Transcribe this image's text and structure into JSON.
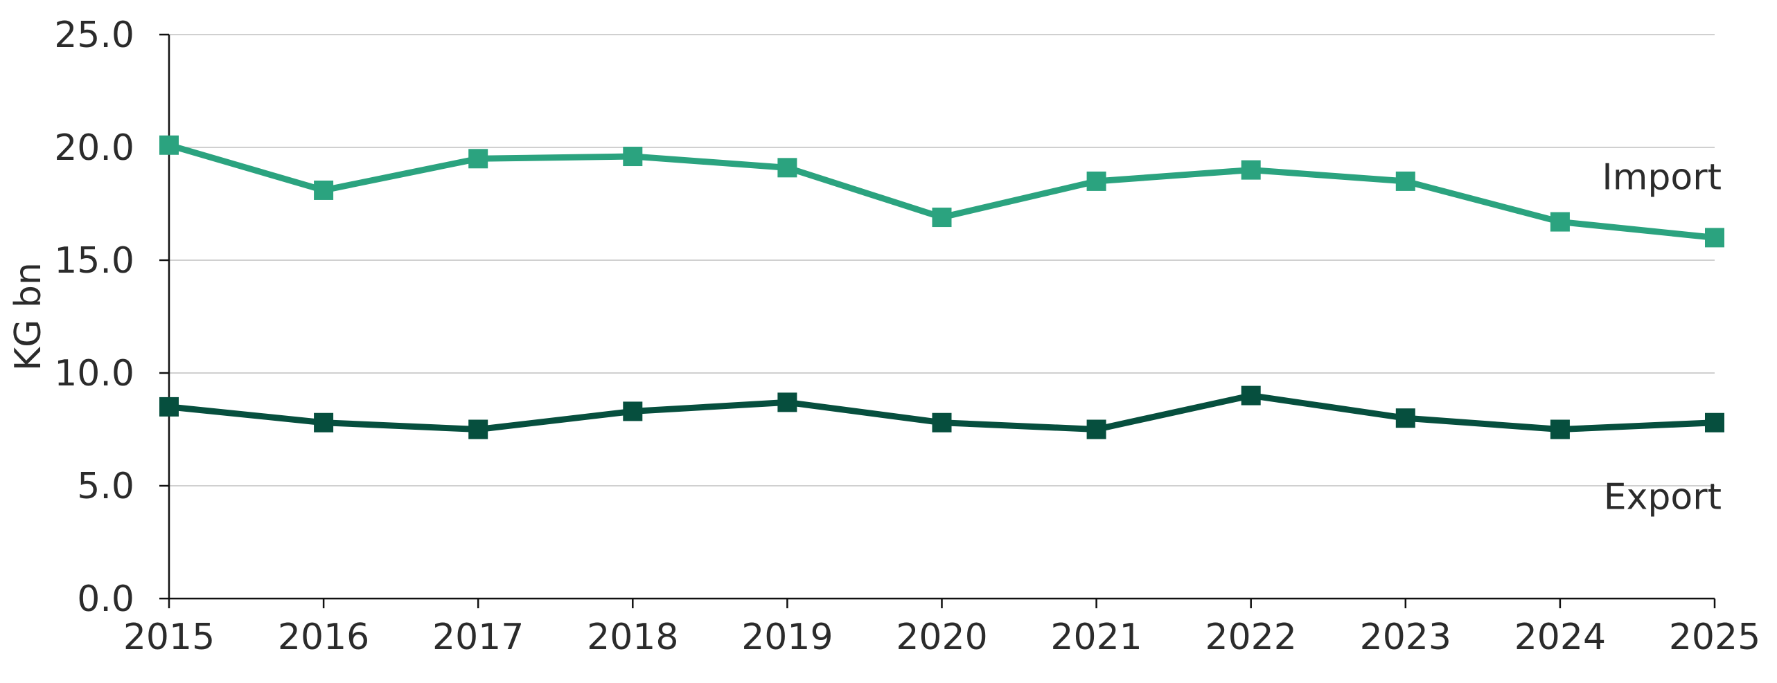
{
  "chart_data": {
    "type": "line",
    "title": "",
    "xlabel": "",
    "ylabel": "KG bn",
    "x": [
      "2015",
      "2016",
      "2017",
      "2018",
      "2019",
      "2020",
      "2021",
      "2022",
      "2023",
      "2024",
      "2025"
    ],
    "ylim": [
      0,
      25
    ],
    "yticks": [
      "0.0",
      "5.0",
      "10.0",
      "15.0",
      "20.0",
      "25.0"
    ],
    "grid": true,
    "legend": "none",
    "series": [
      {
        "name": "Import",
        "color": "#2ba37f",
        "marker": "square",
        "values": [
          20.1,
          18.1,
          19.5,
          19.6,
          19.1,
          16.9,
          18.5,
          19.0,
          18.5,
          16.7,
          16.0
        ]
      },
      {
        "name": "Export",
        "color": "#064f3e",
        "marker": "square",
        "values": [
          8.5,
          7.8,
          7.5,
          8.3,
          8.7,
          7.8,
          7.5,
          9.0,
          8.0,
          7.5,
          7.8
        ]
      }
    ]
  }
}
